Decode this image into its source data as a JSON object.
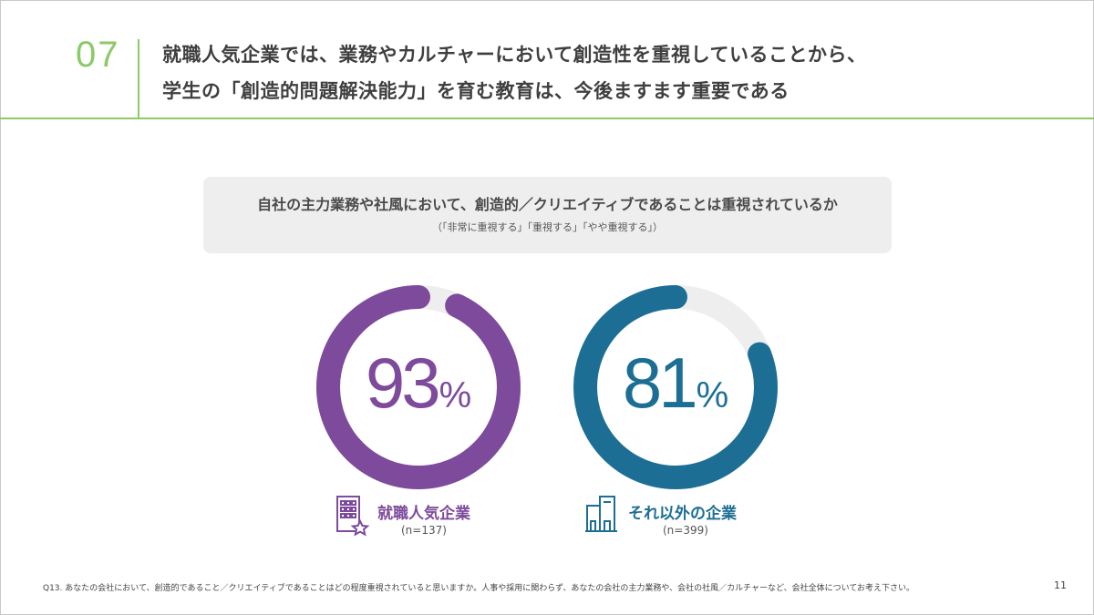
{
  "header": {
    "section_number": "07",
    "title_line1": "就職人気企業では、業務やカルチャーにおいて創造性を重視していることから、",
    "title_line2": "学生の「創造的問題解決能力」を育む教育は、今後ますます重要である",
    "accent_color": "#8cc967"
  },
  "question": {
    "main": "自社の主力業務や社風において、創造的／クリエイティブであることは重視されているか",
    "sub": "（「非常に重視する」「重視する」「やや重視する」）"
  },
  "chart_data": {
    "type": "pie",
    "subtype": "donut",
    "title": "自社の主力業務や社風において、創造的／クリエイティブであることは重視されているか",
    "track_color": "#eeeeee",
    "series": [
      {
        "name": "就職人気企業",
        "n_label": "(n=137)",
        "value": 93,
        "value_label": "93",
        "unit": "%",
        "color": "#7d4a9c",
        "icon": "building-star-icon"
      },
      {
        "name": "それ以外の企業",
        "n_label": "(n=399)",
        "value": 81,
        "value_label": "81",
        "unit": "%",
        "color": "#1d6e95",
        "icon": "office-buildings-icon"
      }
    ]
  },
  "footer": {
    "note": "Q13. あなたの会社において、創造的であること／クリエイティブであることはどの程度重視されていると思いますか。人事や採用に関わらず、あなたの会社の主力業務や、会社の社風／カルチャーなど、会社全体についてお考え下さい。",
    "page": "11"
  }
}
